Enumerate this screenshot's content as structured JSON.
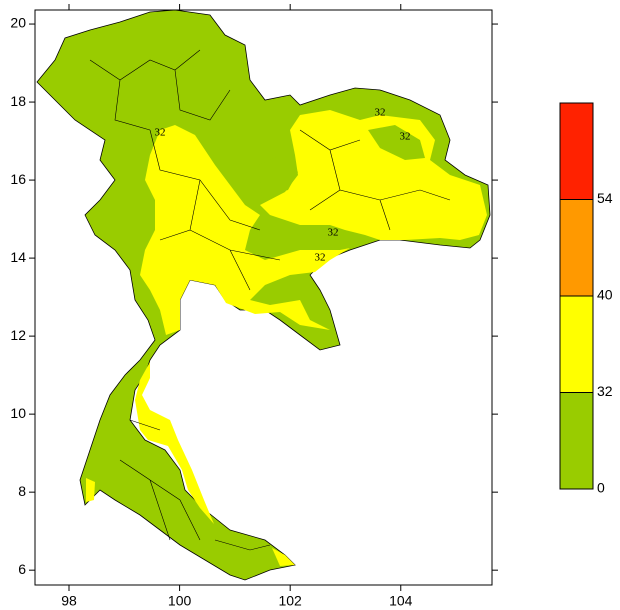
{
  "map": {
    "xlim": [
      97.385,
      105.65
    ],
    "ylim": [
      5.62,
      20.36
    ],
    "xticks": [
      98,
      100,
      102,
      104
    ],
    "yticks": [
      6,
      8,
      10,
      12,
      14,
      16,
      18,
      20
    ],
    "contour_labels": [
      "32",
      "32",
      "32",
      "32",
      "32"
    ]
  },
  "colorbar": {
    "levels": [
      0,
      32,
      40,
      54
    ],
    "colors": [
      "#99cc00",
      "#ffff00",
      "#ff9900",
      "#ff2200"
    ]
  }
}
